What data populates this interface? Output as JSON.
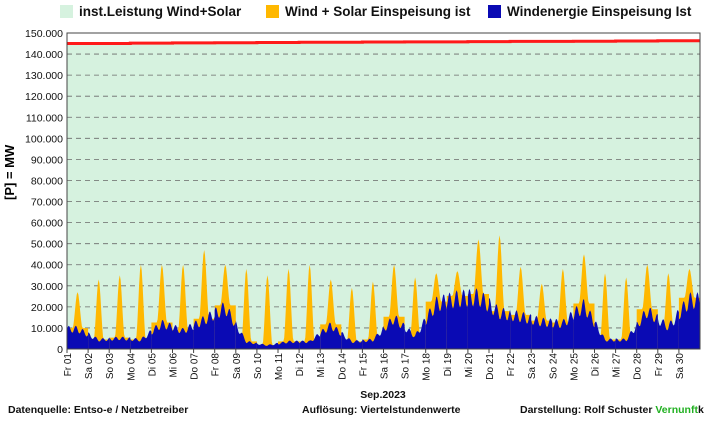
{
  "legend": {
    "installed": "inst.Leistung Wind+Solar",
    "wind_solar": "Wind + Solar Einspeisung ist",
    "wind": "Windenergie Einspeisung Ist"
  },
  "colors": {
    "installed_fill": "#d6f2df",
    "installed_line": "#ff1a1a",
    "wind_solar": "#ffb800",
    "wind": "#0a0ab4",
    "grid": "#6a6a6a"
  },
  "footer": {
    "source": "Datenquelle:  Entso-e  / Netzbetreiber",
    "resolution": "Auflösung: Viertelstundenwerte",
    "author": "Darstellung:  Rolf Schuster",
    "brand_a": "Vernunft",
    "brand_b": "kraft"
  },
  "chart_data": {
    "type": "area",
    "ylabel": "[P] =   MW",
    "xlabel": "Sep.2023",
    "ylim": [
      0,
      150000
    ],
    "yticks": [
      "0",
      "10.000",
      "20.000",
      "30.000",
      "40.000",
      "50.000",
      "60.000",
      "70.000",
      "80.000",
      "90.000",
      "100.000",
      "110.000",
      "120.000",
      "130.000",
      "140.000",
      "150.000"
    ],
    "grid": true,
    "legend_position": "top",
    "categories": [
      "Fr 01",
      "Sa 02",
      "So 03",
      "Mo 04",
      "Di 05",
      "Mi 06",
      "Do 07",
      "Fr 08",
      "Sa 09",
      "So 10",
      "Mo 11",
      "Di 12",
      "Mi 13",
      "Do 14",
      "Fr 15",
      "Sa 16",
      "So 17",
      "Mo 18",
      "Di 19",
      "Mi 20",
      "Do 21",
      "Fr 22",
      "Sa 23",
      "So 24",
      "Mo 25",
      "Di 26",
      "Mi 27",
      "Do 28",
      "Fr 29",
      "Sa 30"
    ],
    "series": [
      {
        "name": "inst.Leistung Wind+Solar",
        "values": [
          145000,
          145000,
          145000,
          145200,
          145200,
          145300,
          145300,
          145400,
          145400,
          145500,
          145500,
          145600,
          145600,
          145600,
          145700,
          145700,
          145800,
          145800,
          145800,
          145900,
          145900,
          146000,
          146000,
          146000,
          146100,
          146100,
          146200,
          146200,
          146300,
          146300
        ]
      },
      {
        "name": "Wind + Solar Einspeisung ist",
        "values": [
          27000,
          33000,
          35000,
          40000,
          40000,
          40000,
          47000,
          40000,
          38000,
          35000,
          38000,
          40000,
          33000,
          29000,
          32000,
          40000,
          34000,
          36000,
          37000,
          52000,
          54000,
          39000,
          31000,
          38000,
          45000,
          36000,
          34000,
          40000,
          36000,
          38000
        ]
      },
      {
        "name": "Windenergie Einspeisung Ist",
        "values": [
          11000,
          5000,
          6000,
          5000,
          14000,
          10000,
          16000,
          23000,
          4000,
          2000,
          4000,
          4000,
          13000,
          4000,
          5000,
          17000,
          7000,
          25000,
          28000,
          29000,
          20000,
          18000,
          15000,
          14000,
          24000,
          5000,
          5000,
          21000,
          12000,
          27000
        ]
      }
    ]
  }
}
